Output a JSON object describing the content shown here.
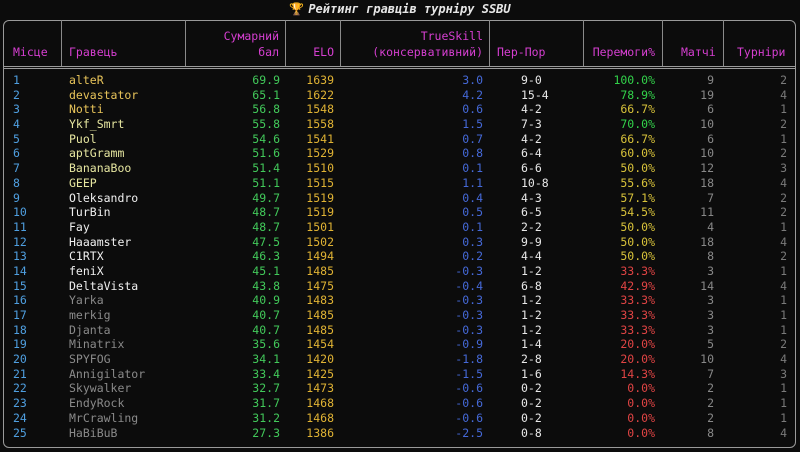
{
  "title": "Рейтинг гравців турніру SSBU",
  "title_icon": "trophy-icon",
  "headers": {
    "rank": "Місце",
    "player": "Гравець",
    "score_line1": "Сумарний",
    "score_line2": "бал",
    "elo": "ELO",
    "ts_line1": "TrueSkill",
    "ts_line2": "(консервативний)",
    "wl": "Пер-Пор",
    "winrate": "Перемоги%",
    "games": "Матчі",
    "tournaments": "Турніри"
  },
  "colors": {
    "header": "#d63fd1",
    "rank": "#4f9fe0",
    "score": "#42c95a",
    "elo": "#e0b334",
    "trueskill": "#4569d8",
    "win_high": "#32d24a",
    "win_mid": "#d8c23a",
    "win_low": "#e04444"
  },
  "rows": [
    {
      "rank": "1",
      "name": "alteR",
      "score": "69.9",
      "elo": "1639",
      "ts": "3.0",
      "wl": "9-0",
      "win": "100.0%",
      "games": "9",
      "tour": "2",
      "name_color": "#e8c45a",
      "win_color": "#32d24a"
    },
    {
      "rank": "2",
      "name": "devastator",
      "score": "65.1",
      "elo": "1622",
      "ts": "4.2",
      "wl": "15-4",
      "win": "78.9%",
      "games": "19",
      "tour": "4",
      "name_color": "#e8c45a",
      "win_color": "#32d24a"
    },
    {
      "rank": "3",
      "name": "Notti",
      "score": "56.8",
      "elo": "1548",
      "ts": "0.6",
      "wl": "4-2",
      "win": "66.7%",
      "games": "6",
      "tour": "1",
      "name_color": "#e8c45a",
      "win_color": "#d8c23a"
    },
    {
      "rank": "4",
      "name": "Ykf_Smrt",
      "score": "55.8",
      "elo": "1558",
      "ts": "1.5",
      "wl": "7-3",
      "win": "70.0%",
      "games": "10",
      "tour": "2",
      "name_color": "#e6e6a0",
      "win_color": "#32d24a"
    },
    {
      "rank": "5",
      "name": "Puol",
      "score": "54.6",
      "elo": "1541",
      "ts": "0.7",
      "wl": "4-2",
      "win": "66.7%",
      "games": "6",
      "tour": "1",
      "name_color": "#e6e6a0",
      "win_color": "#d8c23a"
    },
    {
      "rank": "6",
      "name": "aptGramm",
      "score": "51.6",
      "elo": "1529",
      "ts": "0.8",
      "wl": "6-4",
      "win": "60.0%",
      "games": "10",
      "tour": "2",
      "name_color": "#e6e6a0",
      "win_color": "#d8c23a"
    },
    {
      "rank": "7",
      "name": "BananaBoo",
      "score": "51.4",
      "elo": "1510",
      "ts": "0.1",
      "wl": "6-6",
      "win": "50.0%",
      "games": "12",
      "tour": "3",
      "name_color": "#e6e6a0",
      "win_color": "#d8c23a"
    },
    {
      "rank": "8",
      "name": "GEEP",
      "score": "51.1",
      "elo": "1515",
      "ts": "1.1",
      "wl": "10-8",
      "win": "55.6%",
      "games": "18",
      "tour": "4",
      "name_color": "#e6e6a0",
      "win_color": "#d8c23a"
    },
    {
      "rank": "9",
      "name": "Oleksandro",
      "score": "49.7",
      "elo": "1519",
      "ts": "0.4",
      "wl": "4-3",
      "win": "57.1%",
      "games": "7",
      "tour": "2",
      "name_color": "#f0f0f0",
      "win_color": "#d8c23a"
    },
    {
      "rank": "10",
      "name": "TurBin",
      "score": "48.7",
      "elo": "1519",
      "ts": "0.5",
      "wl": "6-5",
      "win": "54.5%",
      "games": "11",
      "tour": "2",
      "name_color": "#f0f0f0",
      "win_color": "#d8c23a"
    },
    {
      "rank": "11",
      "name": "Fay",
      "score": "48.7",
      "elo": "1501",
      "ts": "0.1",
      "wl": "2-2",
      "win": "50.0%",
      "games": "4",
      "tour": "1",
      "name_color": "#f0f0f0",
      "win_color": "#d8c23a"
    },
    {
      "rank": "12",
      "name": "Haaamster",
      "score": "47.5",
      "elo": "1502",
      "ts": "0.3",
      "wl": "9-9",
      "win": "50.0%",
      "games": "18",
      "tour": "4",
      "name_color": "#f0f0f0",
      "win_color": "#d8c23a"
    },
    {
      "rank": "13",
      "name": "C1RTX",
      "score": "46.3",
      "elo": "1494",
      "ts": "0.2",
      "wl": "4-4",
      "win": "50.0%",
      "games": "8",
      "tour": "2",
      "name_color": "#f0f0f0",
      "win_color": "#d8c23a"
    },
    {
      "rank": "14",
      "name": "feniX",
      "score": "45.1",
      "elo": "1485",
      "ts": "-0.3",
      "wl": "1-2",
      "win": "33.3%",
      "games": "3",
      "tour": "1",
      "name_color": "#f0f0f0",
      "win_color": "#e04444"
    },
    {
      "rank": "15",
      "name": "DeltaVista",
      "score": "43.8",
      "elo": "1475",
      "ts": "-0.4",
      "wl": "6-8",
      "win": "42.9%",
      "games": "14",
      "tour": "4",
      "name_color": "#f0f0f0",
      "win_color": "#e04444"
    },
    {
      "rank": "16",
      "name": "Yarka",
      "score": "40.9",
      "elo": "1483",
      "ts": "-0.3",
      "wl": "1-2",
      "win": "33.3%",
      "games": "3",
      "tour": "1",
      "name_color": "#8a8a8a",
      "win_color": "#e04444"
    },
    {
      "rank": "17",
      "name": "merkig",
      "score": "40.7",
      "elo": "1485",
      "ts": "-0.3",
      "wl": "1-2",
      "win": "33.3%",
      "games": "3",
      "tour": "1",
      "name_color": "#8a8a8a",
      "win_color": "#e04444"
    },
    {
      "rank": "18",
      "name": "Djanta",
      "score": "40.7",
      "elo": "1485",
      "ts": "-0.3",
      "wl": "1-2",
      "win": "33.3%",
      "games": "3",
      "tour": "1",
      "name_color": "#8a8a8a",
      "win_color": "#e04444"
    },
    {
      "rank": "19",
      "name": "Minatrix",
      "score": "35.6",
      "elo": "1454",
      "ts": "-0.9",
      "wl": "1-4",
      "win": "20.0%",
      "games": "5",
      "tour": "2",
      "name_color": "#8a8a8a",
      "win_color": "#e04444"
    },
    {
      "rank": "20",
      "name": "SPYFOG",
      "score": "34.1",
      "elo": "1420",
      "ts": "-1.8",
      "wl": "2-8",
      "win": "20.0%",
      "games": "10",
      "tour": "4",
      "name_color": "#8a8a8a",
      "win_color": "#e04444"
    },
    {
      "rank": "21",
      "name": "Annigilator",
      "score": "33.4",
      "elo": "1425",
      "ts": "-1.5",
      "wl": "1-6",
      "win": "14.3%",
      "games": "7",
      "tour": "3",
      "name_color": "#8a8a8a",
      "win_color": "#e04444"
    },
    {
      "rank": "22",
      "name": "Skywalker",
      "score": "32.7",
      "elo": "1473",
      "ts": "-0.6",
      "wl": "0-2",
      "win": "0.0%",
      "games": "2",
      "tour": "1",
      "name_color": "#8a8a8a",
      "win_color": "#e04444"
    },
    {
      "rank": "23",
      "name": "EndyRock",
      "score": "31.7",
      "elo": "1468",
      "ts": "-0.6",
      "wl": "0-2",
      "win": "0.0%",
      "games": "2",
      "tour": "1",
      "name_color": "#8a8a8a",
      "win_color": "#e04444"
    },
    {
      "rank": "24",
      "name": "MrCrawling",
      "score": "31.2",
      "elo": "1468",
      "ts": "-0.6",
      "wl": "0-2",
      "win": "0.0%",
      "games": "2",
      "tour": "1",
      "name_color": "#8a8a8a",
      "win_color": "#e04444"
    },
    {
      "rank": "25",
      "name": "HaBiBuB",
      "score": "27.3",
      "elo": "1386",
      "ts": "-2.5",
      "wl": "0-8",
      "win": "0.0%",
      "games": "8",
      "tour": "4",
      "name_color": "#8a8a8a",
      "win_color": "#e04444"
    }
  ]
}
